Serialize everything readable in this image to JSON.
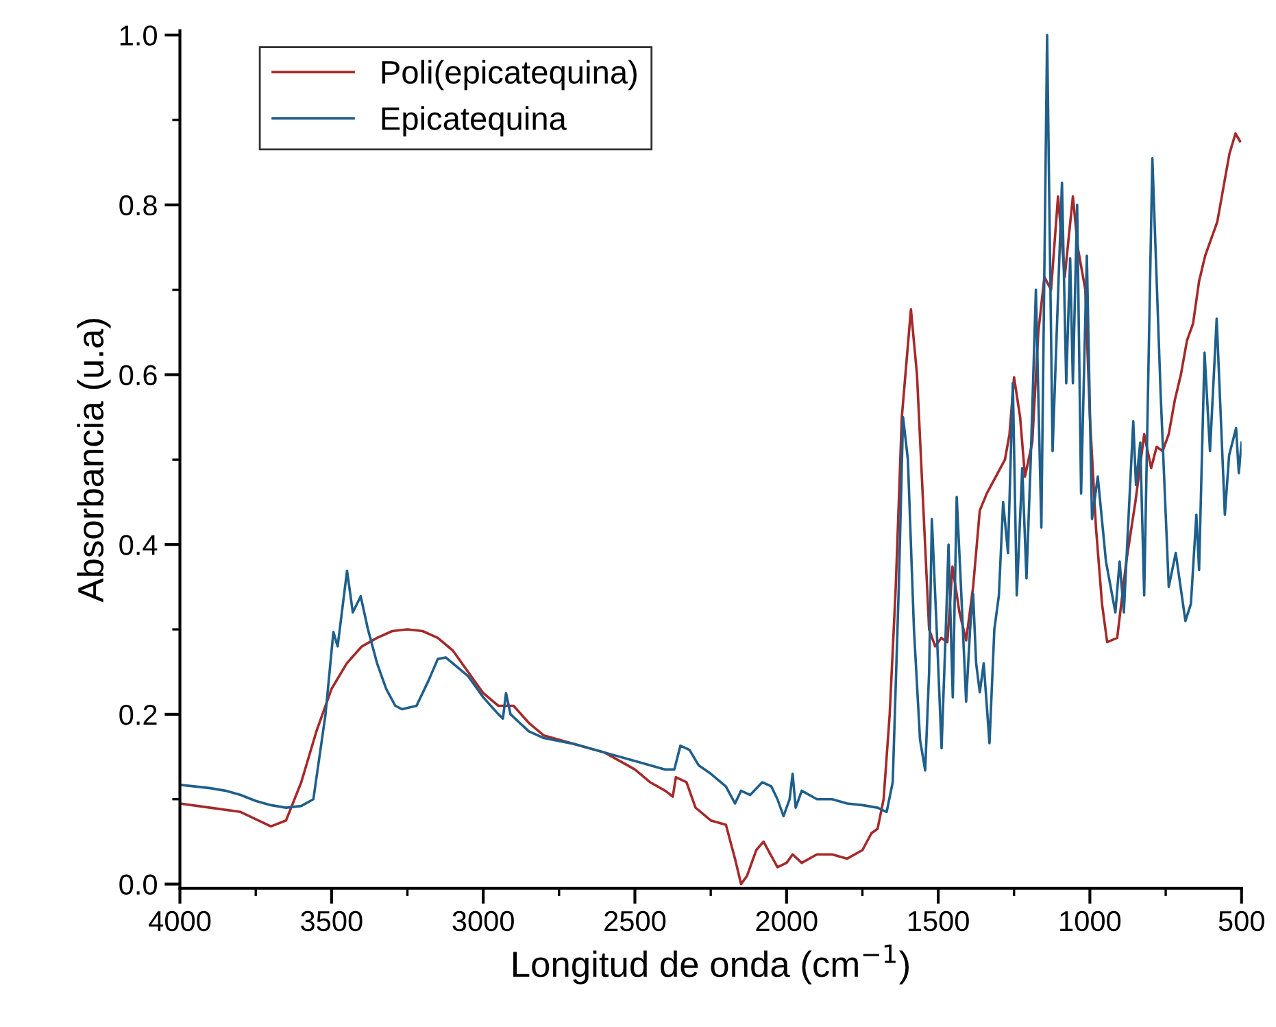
{
  "chart_data": {
    "type": "line",
    "xlabel": "Longitud de onda (cm$^{−1}$)",
    "ylabel": "Absorbancia (u.a)",
    "xlim": [
      4000,
      500
    ],
    "ylim": [
      -0.005,
      1.005
    ],
    "xticks": [
      4000,
      3500,
      3000,
      2500,
      2000,
      1500,
      1000,
      500
    ],
    "yticks": [
      {
        "value": 0,
        "label": "0.0"
      },
      0.2,
      0.4,
      0.6,
      0.8,
      {
        "value": 1,
        "label": "1.0"
      }
    ],
    "legend": "top left",
    "grid": false,
    "marker": "none",
    "line_style": "solid",
    "series": [
      {
        "name": "Poli(epicatequina)",
        "color": "#a52a2a",
        "x": [
          4000,
          3900,
          3800,
          3700,
          3650,
          3600,
          3550,
          3500,
          3450,
          3400,
          3350,
          3300,
          3250,
          3200,
          3150,
          3100,
          3050,
          3000,
          2950,
          2900,
          2850,
          2800,
          2700,
          2600,
          2500,
          2450,
          2400,
          2375,
          2365,
          2330,
          2300,
          2250,
          2200,
          2170,
          2150,
          2130,
          2100,
          2076,
          2030,
          2000,
          1980,
          1950,
          1900,
          1850,
          1800,
          1750,
          1720,
          1700,
          1680,
          1660,
          1640,
          1620,
          1590,
          1570,
          1550,
          1530,
          1510,
          1490,
          1470,
          1453,
          1430,
          1408,
          1385,
          1363,
          1340,
          1310,
          1280,
          1265,
          1250,
          1230,
          1214,
          1190,
          1170,
          1150,
          1128,
          1105,
          1083,
          1056,
          1040,
          1015,
          1000,
          980,
          960,
          943,
          910,
          880,
          850,
          821,
          798,
          780,
          760,
          740,
          720,
          700,
          680,
          660,
          640,
          620,
          600,
          580,
          560,
          540,
          520,
          505
        ],
        "values": [
          0.095,
          0.09,
          0.085,
          0.068,
          0.075,
          0.12,
          0.18,
          0.23,
          0.26,
          0.28,
          0.29,
          0.298,
          0.3,
          0.298,
          0.29,
          0.275,
          0.25,
          0.225,
          0.21,
          0.21,
          0.19,
          0.175,
          0.165,
          0.155,
          0.135,
          0.12,
          0.11,
          0.103,
          0.126,
          0.12,
          0.09,
          0.075,
          0.07,
          0.03,
          0.0,
          0.01,
          0.04,
          0.05,
          0.02,
          0.025,
          0.035,
          0.025,
          0.035,
          0.035,
          0.03,
          0.04,
          0.06,
          0.065,
          0.1,
          0.2,
          0.35,
          0.55,
          0.677,
          0.6,
          0.45,
          0.3,
          0.28,
          0.29,
          0.285,
          0.374,
          0.32,
          0.287,
          0.35,
          0.44,
          0.46,
          0.48,
          0.5,
          0.53,
          0.597,
          0.55,
          0.48,
          0.52,
          0.65,
          0.715,
          0.7,
          0.81,
          0.715,
          0.81,
          0.75,
          0.7,
          0.55,
          0.42,
          0.33,
          0.285,
          0.29,
          0.38,
          0.45,
          0.53,
          0.49,
          0.515,
          0.51,
          0.53,
          0.57,
          0.6,
          0.64,
          0.66,
          0.71,
          0.74,
          0.76,
          0.78,
          0.82,
          0.86,
          0.884,
          0.875
        ]
      },
      {
        "name": "Epicatequina",
        "color": "#1f5f8b",
        "x": [
          4000,
          3950,
          3900,
          3850,
          3800,
          3750,
          3700,
          3650,
          3600,
          3560,
          3520,
          3494,
          3480,
          3449,
          3430,
          3404,
          3380,
          3350,
          3320,
          3290,
          3268,
          3220,
          3180,
          3150,
          3124,
          3050,
          3000,
          2950,
          2935,
          2925,
          2910,
          2850,
          2800,
          2700,
          2600,
          2500,
          2400,
          2370,
          2350,
          2320,
          2290,
          2250,
          2200,
          2170,
          2150,
          2120,
          2080,
          2050,
          2030,
          2010,
          1990,
          1980,
          1970,
          1950,
          1900,
          1850,
          1800,
          1750,
          1700,
          1670,
          1650,
          1630,
          1616,
          1600,
          1580,
          1560,
          1543,
          1530,
          1521,
          1505,
          1489,
          1475,
          1466,
          1452,
          1439,
          1425,
          1408,
          1395,
          1385,
          1375,
          1363,
          1350,
          1331,
          1315,
          1300,
          1286,
          1270,
          1254,
          1241,
          1223,
          1209,
          1195,
          1178,
          1160,
          1141,
          1123,
          1092,
          1078,
          1065,
          1056,
          1042,
          1029,
          1010,
          993,
          974,
          947,
          916,
          902,
          888,
          857,
          848,
          834,
          821,
          794,
          767,
          740,
          717,
          685,
          667,
          649,
          640,
          622,
          604,
          582,
          555,
          541,
          518,
          509,
          500
        ],
        "values": [
          0.117,
          0.115,
          0.113,
          0.11,
          0.105,
          0.098,
          0.093,
          0.09,
          0.092,
          0.1,
          0.2,
          0.297,
          0.28,
          0.369,
          0.32,
          0.339,
          0.3,
          0.26,
          0.23,
          0.21,
          0.206,
          0.21,
          0.24,
          0.265,
          0.267,
          0.245,
          0.22,
          0.2,
          0.195,
          0.225,
          0.2,
          0.18,
          0.172,
          0.165,
          0.155,
          0.145,
          0.135,
          0.135,
          0.163,
          0.158,
          0.14,
          0.13,
          0.115,
          0.095,
          0.11,
          0.105,
          0.12,
          0.115,
          0.1,
          0.08,
          0.1,
          0.13,
          0.09,
          0.11,
          0.1,
          0.1,
          0.095,
          0.093,
          0.09,
          0.085,
          0.12,
          0.35,
          0.55,
          0.5,
          0.3,
          0.17,
          0.134,
          0.25,
          0.43,
          0.3,
          0.16,
          0.3,
          0.4,
          0.22,
          0.456,
          0.35,
          0.215,
          0.3,
          0.342,
          0.26,
          0.226,
          0.26,
          0.166,
          0.3,
          0.34,
          0.45,
          0.39,
          0.59,
          0.34,
          0.49,
          0.36,
          0.5,
          0.7,
          0.42,
          1.0,
          0.51,
          0.826,
          0.59,
          0.737,
          0.59,
          0.8,
          0.46,
          0.74,
          0.43,
          0.48,
          0.38,
          0.32,
          0.38,
          0.32,
          0.545,
          0.47,
          0.52,
          0.34,
          0.855,
          0.58,
          0.35,
          0.39,
          0.31,
          0.33,
          0.435,
          0.37,
          0.626,
          0.51,
          0.666,
          0.435,
          0.505,
          0.537,
          0.484,
          0.52
        ]
      }
    ]
  }
}
